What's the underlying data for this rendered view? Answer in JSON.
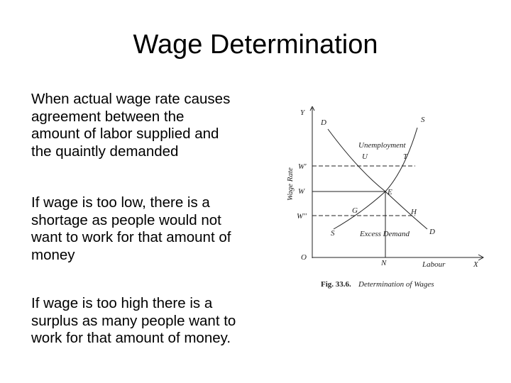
{
  "title": "Wage Determination",
  "paragraphs": [
    {
      "lines": [
        "When actual wage rate causes",
        "agreement between the",
        "amount of labor supplied and",
        "the quaintly demanded"
      ]
    },
    {
      "lines": [
        "If wage is too low, there is a",
        "shortage as people would not",
        "want to work for that amount of",
        "money"
      ]
    },
    {
      "lines": [
        "If wage is too high there is a",
        "surplus as many people want to",
        "work for that amount of money."
      ]
    }
  ],
  "figure": {
    "axis_y": "Y",
    "axis_x": "X",
    "origin": "O",
    "y_title": "Wage Rate",
    "x_title": "Labour",
    "demand_top": "D",
    "supply_top": "S",
    "demand_bottom": "D",
    "supply_bottom": "S",
    "w_high": "W'",
    "w_eq": "W",
    "w_low": "W''",
    "unemployment": "Unemployment",
    "u": "U",
    "t": "T",
    "e": "E",
    "g": "G",
    "h": "H",
    "excess_demand": "Excess Demand",
    "n": "N",
    "caption_num": "Fig. 33.6.",
    "caption": "Determination of Wages"
  }
}
